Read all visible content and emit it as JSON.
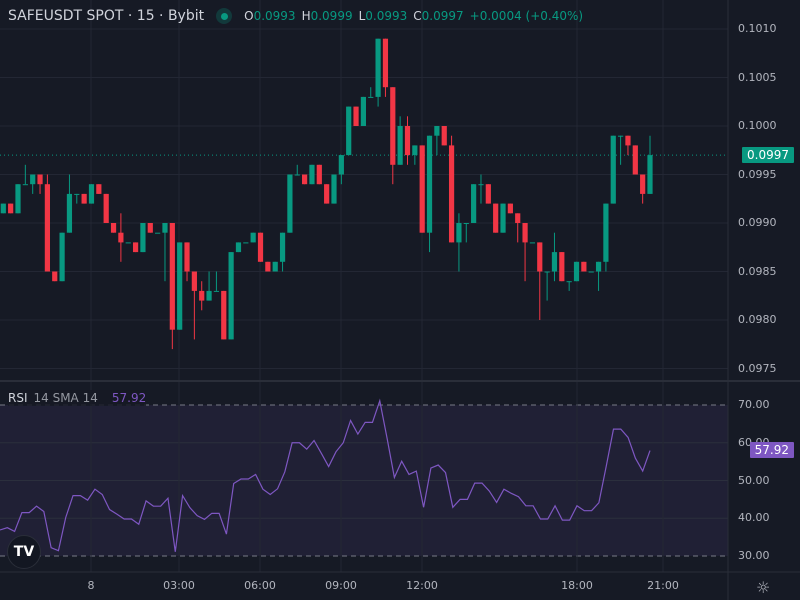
{
  "header": {
    "symbol_line": "SAFEUSDT SPOT · 15 · Bybit",
    "ohlc": [
      {
        "key": "O",
        "value": "0.0993"
      },
      {
        "key": "H",
        "value": "0.0999"
      },
      {
        "key": "L",
        "value": "0.0993"
      },
      {
        "key": "C",
        "value": "0.0997"
      }
    ],
    "change": "+0.0004 (+0.40%)",
    "status_icon": "market-open-dot-icon"
  },
  "rsi_header": {
    "title": "RSI",
    "params": "14 SMA 14",
    "value": "57.92"
  },
  "colors": {
    "up": "#089981",
    "down": "#f23645",
    "rsi": "#7e57c2",
    "background": "#161a25"
  },
  "chart_data": [
    {
      "type": "candlestick",
      "ylim": [
        0.0975,
        0.101
      ],
      "y_ticks": [
        "0.1010",
        "0.1005",
        "0.1000",
        "0.0995",
        "0.0990",
        "0.0985",
        "0.0980",
        "0.0975"
      ],
      "last_price": "0.0997",
      "x_ticks": [
        "8",
        "03:00",
        "06:00",
        "09:00",
        "12:00",
        "18:00",
        "21:00"
      ],
      "ohlc": [
        [
          0.0991,
          0.0992,
          0.0991,
          0.0992
        ],
        [
          0.0992,
          0.0992,
          0.0991,
          0.0991
        ],
        [
          0.0991,
          0.0994,
          0.0991,
          0.0994
        ],
        [
          0.0994,
          0.0996,
          0.0994,
          0.0994
        ],
        [
          0.0994,
          0.0995,
          0.0993,
          0.0995
        ],
        [
          0.0995,
          0.0995,
          0.0993,
          0.0994
        ],
        [
          0.0994,
          0.0995,
          0.0985,
          0.0985
        ],
        [
          0.0985,
          0.0985,
          0.0984,
          0.0984
        ],
        [
          0.0984,
          0.0989,
          0.0984,
          0.0989
        ],
        [
          0.0989,
          0.0995,
          0.0989,
          0.0993
        ],
        [
          0.0993,
          0.0993,
          0.0992,
          0.0993
        ],
        [
          0.0993,
          0.0993,
          0.0992,
          0.0992
        ],
        [
          0.0992,
          0.0994,
          0.0992,
          0.0994
        ],
        [
          0.0994,
          0.0994,
          0.0993,
          0.0993
        ],
        [
          0.0993,
          0.0993,
          0.099,
          0.099
        ],
        [
          0.099,
          0.099,
          0.0989,
          0.0989
        ],
        [
          0.0989,
          0.0991,
          0.0986,
          0.0988
        ],
        [
          0.0988,
          0.0988,
          0.0988,
          0.0988
        ],
        [
          0.0988,
          0.0988,
          0.0987,
          0.0987
        ],
        [
          0.0987,
          0.099,
          0.0987,
          0.099
        ],
        [
          0.099,
          0.099,
          0.0989,
          0.0989
        ],
        [
          0.0989,
          0.0989,
          0.0989,
          0.0989
        ],
        [
          0.0989,
          0.099,
          0.0984,
          0.099
        ],
        [
          0.099,
          0.099,
          0.0977,
          0.0979
        ],
        [
          0.0979,
          0.0988,
          0.0979,
          0.0988
        ],
        [
          0.0988,
          0.0988,
          0.0984,
          0.0985
        ],
        [
          0.0985,
          0.0985,
          0.0978,
          0.0983
        ],
        [
          0.0983,
          0.0984,
          0.0981,
          0.0982
        ],
        [
          0.0982,
          0.0985,
          0.0982,
          0.0983
        ],
        [
          0.0983,
          0.0985,
          0.0983,
          0.0983
        ],
        [
          0.0983,
          0.0983,
          0.0978,
          0.0978
        ],
        [
          0.0978,
          0.0987,
          0.0978,
          0.0987
        ],
        [
          0.0987,
          0.0988,
          0.0987,
          0.0988
        ],
        [
          0.0988,
          0.0988,
          0.0988,
          0.0988
        ],
        [
          0.0988,
          0.0989,
          0.0988,
          0.0989
        ],
        [
          0.0989,
          0.0989,
          0.0986,
          0.0986
        ],
        [
          0.0986,
          0.0986,
          0.0985,
          0.0985
        ],
        [
          0.0985,
          0.0986,
          0.0985,
          0.0986
        ],
        [
          0.0986,
          0.0989,
          0.0985,
          0.0989
        ],
        [
          0.0989,
          0.0995,
          0.0989,
          0.0995
        ],
        [
          0.0995,
          0.0996,
          0.0995,
          0.0995
        ],
        [
          0.0995,
          0.0995,
          0.0994,
          0.0994
        ],
        [
          0.0994,
          0.0996,
          0.0994,
          0.0996
        ],
        [
          0.0996,
          0.0996,
          0.0994,
          0.0994
        ],
        [
          0.0994,
          0.0994,
          0.0992,
          0.0992
        ],
        [
          0.0992,
          0.0995,
          0.0992,
          0.0995
        ],
        [
          0.0995,
          0.0997,
          0.0994,
          0.0997
        ],
        [
          0.0997,
          0.1002,
          0.0997,
          0.1002
        ],
        [
          0.1002,
          0.1002,
          0.1,
          0.1
        ],
        [
          0.1,
          0.1003,
          0.1,
          0.1003
        ],
        [
          0.1003,
          0.1004,
          0.1003,
          0.1003
        ],
        [
          0.1003,
          0.1009,
          0.1002,
          0.1009
        ],
        [
          0.1009,
          0.1009,
          0.1003,
          0.1004
        ],
        [
          0.1004,
          0.1004,
          0.0994,
          0.0996
        ],
        [
          0.0996,
          0.1001,
          0.0996,
          0.1
        ],
        [
          0.1,
          0.1001,
          0.0996,
          0.0997
        ],
        [
          0.0997,
          0.0998,
          0.0996,
          0.0998
        ],
        [
          0.0998,
          0.0998,
          0.0989,
          0.0989
        ],
        [
          0.0989,
          0.0999,
          0.0987,
          0.0999
        ],
        [
          0.0999,
          0.1,
          0.0997,
          0.1
        ],
        [
          0.1,
          0.1,
          0.0998,
          0.0998
        ],
        [
          0.0998,
          0.0999,
          0.0988,
          0.0988
        ],
        [
          0.0988,
          0.0991,
          0.0985,
          0.099
        ],
        [
          0.099,
          0.099,
          0.0988,
          0.099
        ],
        [
          0.099,
          0.0994,
          0.099,
          0.0994
        ],
        [
          0.0994,
          0.0995,
          0.0992,
          0.0994
        ],
        [
          0.0994,
          0.0994,
          0.0992,
          0.0992
        ],
        [
          0.0992,
          0.0992,
          0.0989,
          0.0989
        ],
        [
          0.0989,
          0.0992,
          0.0989,
          0.0992
        ],
        [
          0.0992,
          0.0992,
          0.0991,
          0.0991
        ],
        [
          0.0991,
          0.0991,
          0.0988,
          0.099
        ],
        [
          0.099,
          0.099,
          0.0984,
          0.0988
        ],
        [
          0.0988,
          0.0988,
          0.0988,
          0.0988
        ],
        [
          0.0988,
          0.0988,
          0.098,
          0.0985
        ],
        [
          0.0985,
          0.0985,
          0.0982,
          0.0985
        ],
        [
          0.0985,
          0.0989,
          0.0984,
          0.0987
        ],
        [
          0.0987,
          0.0987,
          0.0984,
          0.0984
        ],
        [
          0.0984,
          0.0984,
          0.0983,
          0.0984
        ],
        [
          0.0984,
          0.0986,
          0.0984,
          0.0986
        ],
        [
          0.0986,
          0.0986,
          0.0985,
          0.0985
        ],
        [
          0.0985,
          0.0985,
          0.0985,
          0.0985
        ],
        [
          0.0985,
          0.0986,
          0.0983,
          0.0986
        ],
        [
          0.0986,
          0.0992,
          0.0985,
          0.0992
        ],
        [
          0.0992,
          0.0999,
          0.0992,
          0.0999
        ],
        [
          0.0999,
          0.0999,
          0.0996,
          0.0999
        ],
        [
          0.0999,
          0.0999,
          0.0997,
          0.0998
        ],
        [
          0.0998,
          0.0998,
          0.0995,
          0.0995
        ],
        [
          0.0995,
          0.0995,
          0.0992,
          0.0993
        ],
        [
          0.0993,
          0.0999,
          0.0993,
          0.0997
        ]
      ]
    },
    {
      "type": "line",
      "title": "RSI",
      "ylim": [
        30,
        70
      ],
      "y_ticks": [
        "70.00",
        "60.00",
        "50.00",
        "40.00",
        "30.00"
      ],
      "bands": [
        30,
        70
      ],
      "last_value": "57.92",
      "values": [
        36.9,
        37.5,
        36.5,
        41.5,
        41.5,
        43.2,
        41.8,
        32.2,
        31.4,
        40.2,
        46.0,
        46.0,
        44.8,
        47.7,
        46.3,
        42.3,
        41.1,
        39.8,
        39.8,
        38.4,
        44.6,
        43.2,
        43.2,
        45.3,
        31.1,
        46.0,
        42.8,
        40.7,
        39.7,
        41.3,
        41.3,
        35.8,
        49.2,
        50.4,
        50.4,
        51.6,
        47.7,
        46.3,
        47.8,
        52.3,
        60.0,
        60.0,
        58.3,
        60.6,
        57.2,
        53.7,
        57.6,
        60.0,
        65.9,
        62.3,
        65.4,
        65.4,
        71.1,
        61.2,
        50.8,
        55.1,
        51.6,
        52.5,
        42.9,
        53.3,
        54.1,
        52.1,
        42.9,
        45.0,
        45.0,
        49.3,
        49.3,
        47.2,
        44.2,
        47.7,
        46.6,
        45.7,
        43.3,
        43.3,
        39.8,
        39.8,
        43.3,
        39.5,
        39.5,
        43.3,
        42.0,
        42.0,
        44.1,
        53.7,
        63.6,
        63.6,
        61.4,
        55.9,
        52.5,
        57.92
      ]
    }
  ]
}
